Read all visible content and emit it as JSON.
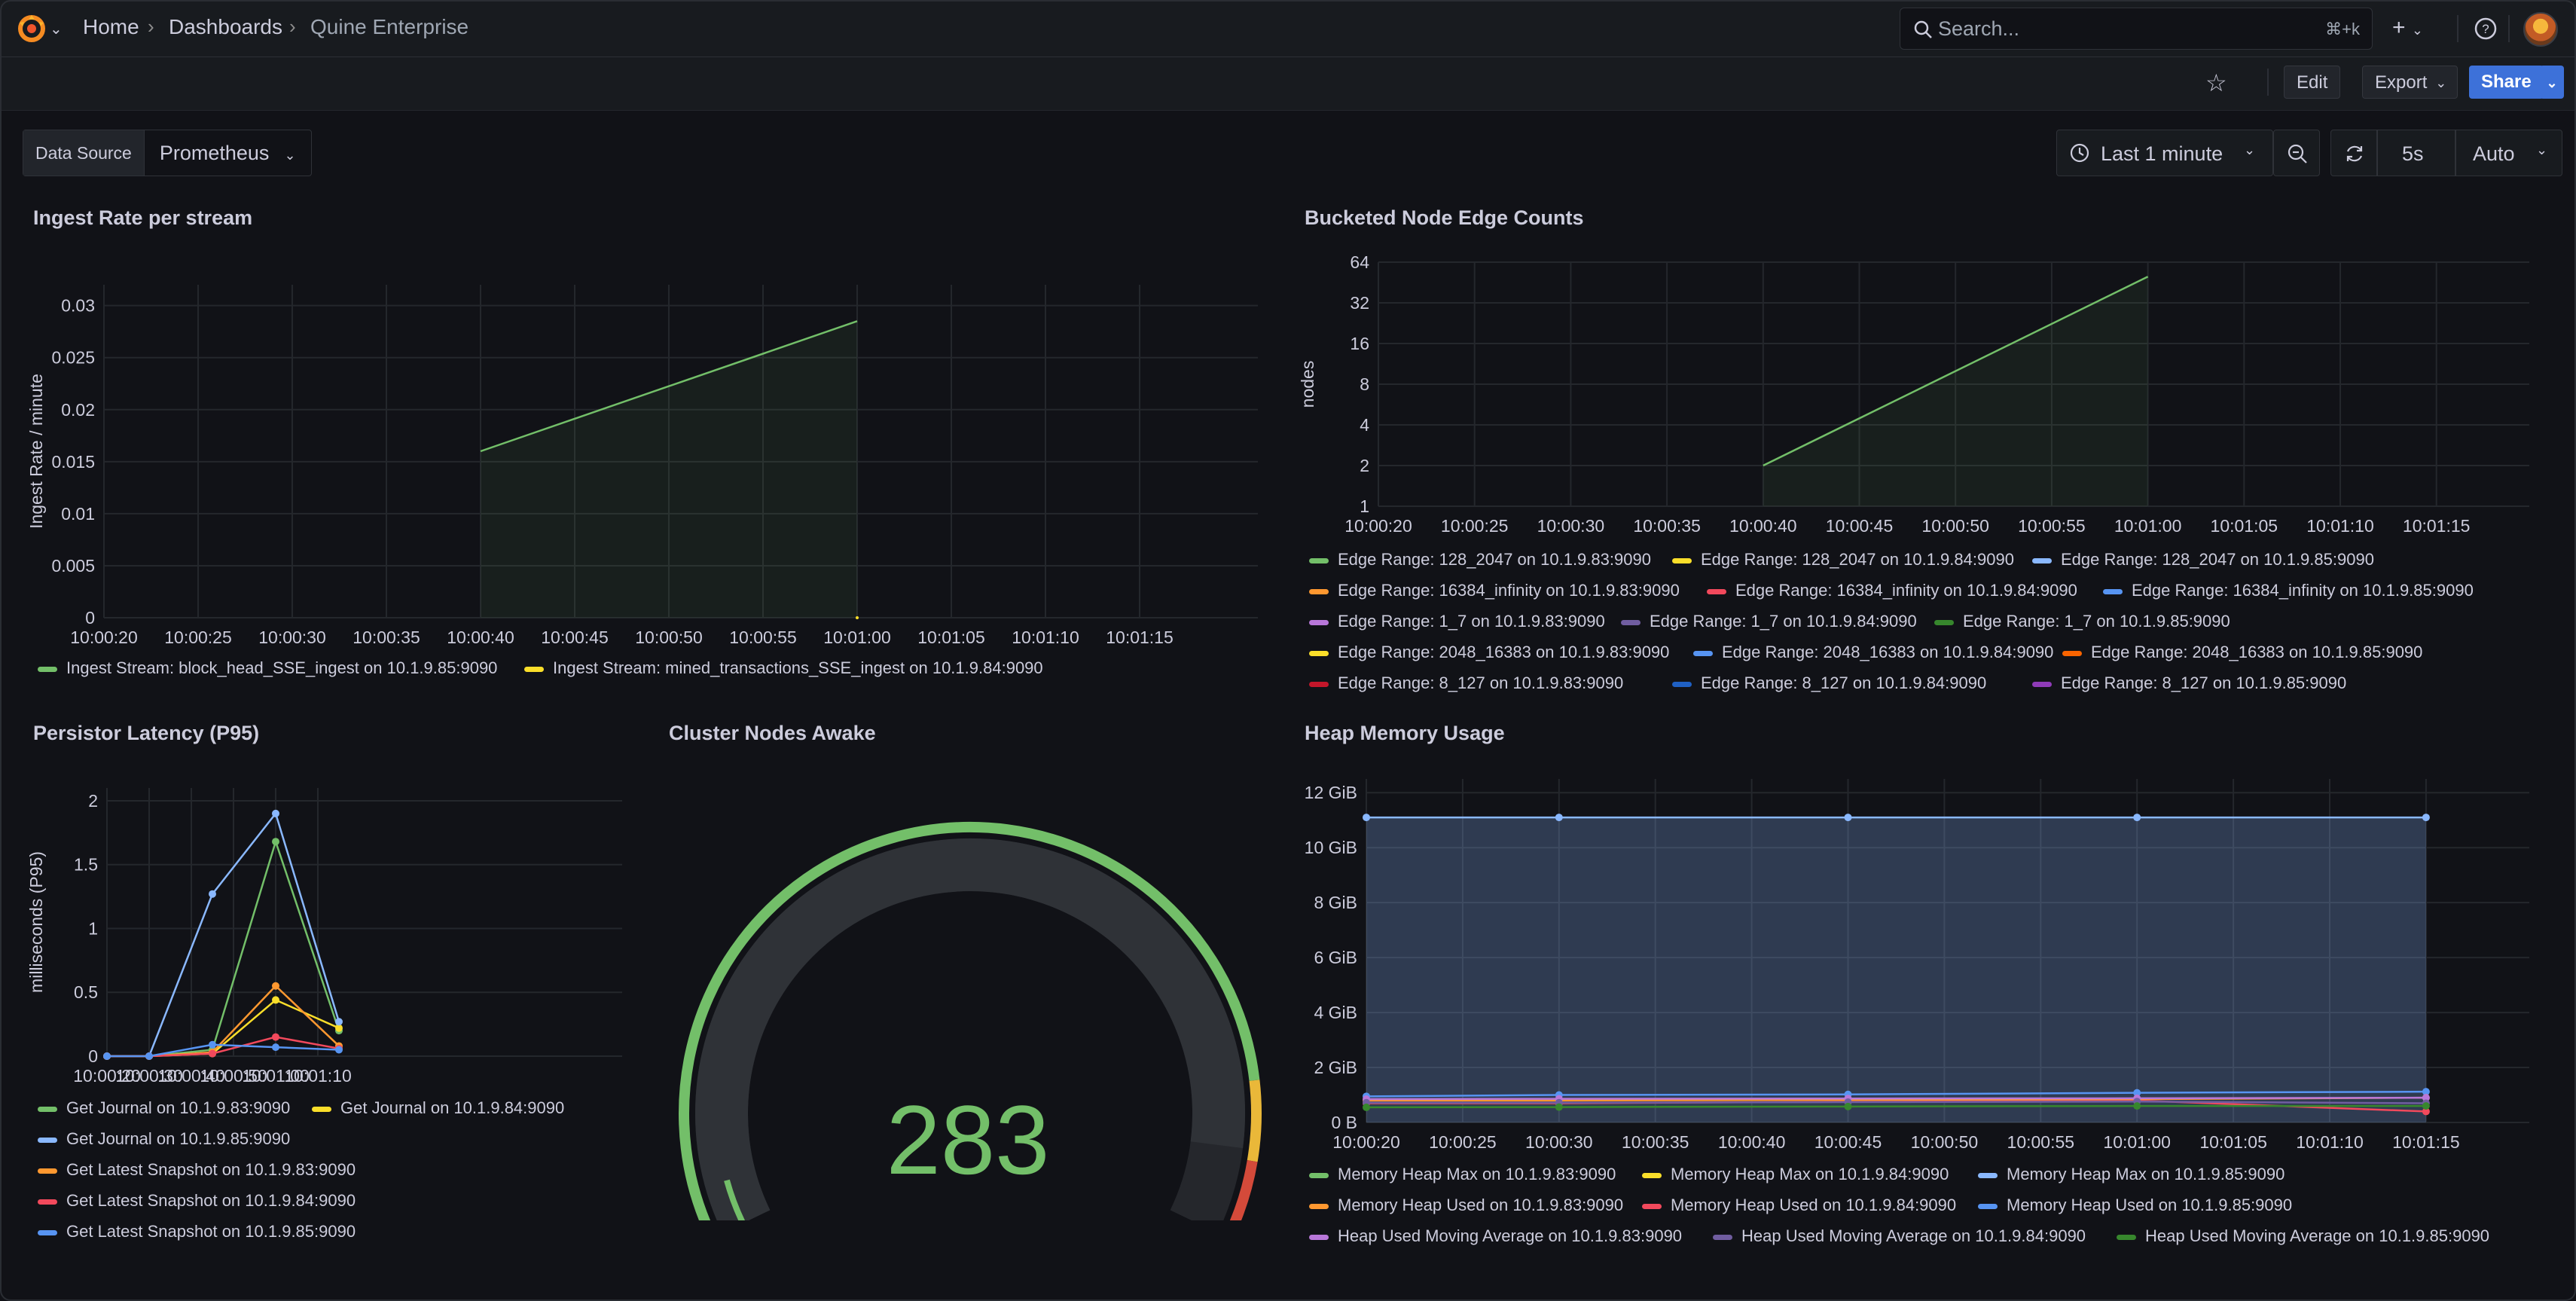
{
  "topbar": {
    "breadcrumbs": [
      "Home",
      "Dashboards",
      "Quine Enterprise"
    ],
    "search_placeholder": "Search...",
    "search_shortcut": "⌘+k",
    "icons": [
      "grafana-logo-icon",
      "plus-icon",
      "help-icon",
      "avatar"
    ]
  },
  "toolbar": {
    "edit": "Edit",
    "export": "Export",
    "share": "Share"
  },
  "variables": {
    "datasource_label": "Data Source",
    "datasource_value": "Prometheus"
  },
  "time_controls": {
    "range": "Last 1 minute",
    "refresh_interval": "5s",
    "auto": "Auto"
  },
  "panels": {
    "ingest": {
      "title": "Ingest Rate per stream",
      "legend": [
        {
          "label": "Ingest Stream: block_head_SSE_ingest on 10.1.9.85:9090",
          "color": "#73bf69"
        },
        {
          "label": "Ingest Stream: mined_transactions_SSE_ingest on 10.1.9.84:9090",
          "color": "#fade2a"
        }
      ]
    },
    "edges": {
      "title": "Bucketed Node Edge Counts",
      "legend": [
        {
          "label": "Edge Range: 128_2047 on 10.1.9.83:9090",
          "color": "#73bf69"
        },
        {
          "label": "Edge Range: 128_2047 on 10.1.9.84:9090",
          "color": "#fade2a"
        },
        {
          "label": "Edge Range: 128_2047 on 10.1.9.85:9090",
          "color": "#8ab8ff"
        },
        {
          "label": "Edge Range: 16384_infinity on 10.1.9.83:9090",
          "color": "#ff9830"
        },
        {
          "label": "Edge Range: 16384_infinity on 10.1.9.84:9090",
          "color": "#f2495c"
        },
        {
          "label": "Edge Range: 16384_infinity on 10.1.9.85:9090",
          "color": "#5794f2"
        },
        {
          "label": "Edge Range: 1_7 on 10.1.9.83:9090",
          "color": "#b877d9"
        },
        {
          "label": "Edge Range: 1_7 on 10.1.9.84:9090",
          "color": "#705da0"
        },
        {
          "label": "Edge Range: 1_7 on 10.1.9.85:9090",
          "color": "#37872d"
        },
        {
          "label": "Edge Range: 2048_16383 on 10.1.9.83:9090",
          "color": "#fade2a"
        },
        {
          "label": "Edge Range: 2048_16383 on 10.1.9.84:9090",
          "color": "#5794f2"
        },
        {
          "label": "Edge Range: 2048_16383 on 10.1.9.85:9090",
          "color": "#fa6400"
        },
        {
          "label": "Edge Range: 8_127 on 10.1.9.83:9090",
          "color": "#c4162a"
        },
        {
          "label": "Edge Range: 8_127 on 10.1.9.84:9090",
          "color": "#1f60c4"
        },
        {
          "label": "Edge Range: 8_127 on 10.1.9.85:9090",
          "color": "#8f3bb8"
        }
      ]
    },
    "persistor": {
      "title": "Persistor Latency (P95)",
      "legend": [
        {
          "label": "Get Journal on 10.1.9.83:9090",
          "color": "#73bf69"
        },
        {
          "label": "Get Journal on 10.1.9.84:9090",
          "color": "#fade2a"
        },
        {
          "label": "Get Journal on 10.1.9.85:9090",
          "color": "#8ab8ff"
        },
        {
          "label": "Get Latest Snapshot on 10.1.9.83:9090",
          "color": "#ff9830"
        },
        {
          "label": "Get Latest Snapshot on 10.1.9.84:9090",
          "color": "#f2495c"
        },
        {
          "label": "Get Latest Snapshot on 10.1.9.85:9090",
          "color": "#5794f2"
        }
      ]
    },
    "cluster": {
      "title": "Cluster Nodes Awake",
      "value": "283",
      "gauge_fraction": 0.92
    },
    "heap": {
      "title": "Heap Memory Usage",
      "legend": [
        {
          "label": "Memory Heap Max on 10.1.9.83:9090",
          "color": "#73bf69"
        },
        {
          "label": "Memory Heap Max on 10.1.9.84:9090",
          "color": "#fade2a"
        },
        {
          "label": "Memory Heap Max on 10.1.9.85:9090",
          "color": "#8ab8ff"
        },
        {
          "label": "Memory Heap Used on 10.1.9.83:9090",
          "color": "#ff9830"
        },
        {
          "label": "Memory Heap Used on 10.1.9.84:9090",
          "color": "#f2495c"
        },
        {
          "label": "Memory Heap Used on 10.1.9.85:9090",
          "color": "#5794f2"
        },
        {
          "label": "Heap Used Moving Average on 10.1.9.83:9090",
          "color": "#b877d9"
        },
        {
          "label": "Heap Used Moving Average on 10.1.9.84:9090",
          "color": "#705da0"
        },
        {
          "label": "Heap Used Moving Average on 10.1.9.85:9090",
          "color": "#37872d"
        }
      ]
    }
  },
  "chart_data": [
    {
      "id": "ingest",
      "type": "line",
      "title": "Ingest Rate per stream",
      "ylabel": "Ingest Rate / minute",
      "xlabel": "",
      "x_ticks": [
        "10:00:20",
        "10:00:25",
        "10:00:30",
        "10:00:35",
        "10:00:40",
        "10:00:45",
        "10:00:50",
        "10:00:55",
        "10:01:00",
        "10:01:05",
        "10:01:10",
        "10:01:15"
      ],
      "y_ticks": [
        "0",
        "0.005",
        "0.01",
        "0.015",
        "0.02",
        "0.025",
        "0.03"
      ],
      "ylim": [
        0,
        0.032
      ],
      "grid": true,
      "legend_position": "bottom",
      "series": [
        {
          "name": "Ingest Stream: block_head_SSE_ingest on 10.1.9.85:9090",
          "color": "#73bf69",
          "x": [
            "10:00:40",
            "10:01:00"
          ],
          "y": [
            0.016,
            0.0285
          ],
          "fill": true
        },
        {
          "name": "Ingest Stream: mined_transactions_SSE_ingest on 10.1.9.84:9090",
          "color": "#fade2a",
          "x": [
            "10:01:00"
          ],
          "y": [
            0
          ]
        }
      ]
    },
    {
      "id": "edges",
      "type": "line",
      "title": "Bucketed Node Edge Counts",
      "ylabel": "nodes",
      "scale": "log2",
      "x_ticks": [
        "10:00:20",
        "10:00:25",
        "10:00:30",
        "10:00:35",
        "10:00:40",
        "10:00:45",
        "10:00:50",
        "10:00:55",
        "10:01:00",
        "10:01:05",
        "10:01:10",
        "10:01:15"
      ],
      "y_ticks": [
        "1",
        "2",
        "4",
        "8",
        "16",
        "32",
        "64"
      ],
      "ylim": [
        1,
        64
      ],
      "grid": true,
      "legend_position": "bottom",
      "series": [
        {
          "name": "Edge Range: 128_2047 on 10.1.9.83:9090",
          "color": "#73bf69",
          "x": [
            "10:00:40",
            "10:01:00"
          ],
          "y": [
            2,
            50
          ],
          "fill": true
        }
      ]
    },
    {
      "id": "persistor",
      "type": "line",
      "title": "Persistor Latency (P95)",
      "ylabel": "milliseconds (P95)",
      "x_ticks": [
        "10:00:20",
        "10:00:30",
        "10:00:40",
        "10:00:50",
        "10:01:00",
        "10:01:10"
      ],
      "y_ticks": [
        "0",
        "0.5",
        "1",
        "1.5",
        "2"
      ],
      "ylim": [
        0,
        2.1
      ],
      "grid": true,
      "legend_position": "bottom",
      "x": [
        "10:00:20",
        "10:00:30",
        "10:00:45",
        "10:01:00",
        "10:01:15"
      ],
      "series": [
        {
          "name": "Get Journal on 10.1.9.83:9090",
          "color": "#73bf69",
          "y": [
            0,
            0,
            0.05,
            1.68,
            0.2
          ]
        },
        {
          "name": "Get Journal on 10.1.9.84:9090",
          "color": "#fade2a",
          "y": [
            0,
            0,
            0.02,
            0.44,
            0.22
          ]
        },
        {
          "name": "Get Journal on 10.1.9.85:9090",
          "color": "#8ab8ff",
          "y": [
            0,
            0,
            1.27,
            1.9,
            0.27
          ]
        },
        {
          "name": "Get Latest Snapshot on 10.1.9.83:9090",
          "color": "#ff9830",
          "y": [
            0,
            0,
            0.03,
            0.55,
            0.08
          ]
        },
        {
          "name": "Get Latest Snapshot on 10.1.9.84:9090",
          "color": "#f2495c",
          "y": [
            0,
            0,
            0.02,
            0.15,
            0.06
          ]
        },
        {
          "name": "Get Latest Snapshot on 10.1.9.85:9090",
          "color": "#5794f2",
          "y": [
            0,
            0,
            0.09,
            0.07,
            0.05
          ]
        }
      ]
    },
    {
      "id": "cluster",
      "type": "gauge",
      "title": "Cluster Nodes Awake",
      "value": 283,
      "fraction": 0.92
    },
    {
      "id": "heap",
      "type": "line",
      "title": "Heap Memory Usage",
      "x_ticks": [
        "10:00:20",
        "10:00:25",
        "10:00:30",
        "10:00:35",
        "10:00:40",
        "10:00:45",
        "10:00:50",
        "10:00:55",
        "10:01:00",
        "10:01:05",
        "10:01:10",
        "10:01:15"
      ],
      "y_ticks": [
        "0 B",
        "2 GiB",
        "4 GiB",
        "6 GiB",
        "8 GiB",
        "10 GiB",
        "12 GiB"
      ],
      "ylim": [
        0,
        12.5
      ],
      "grid": true,
      "legend_position": "bottom",
      "x": [
        "10:00:20",
        "10:00:30",
        "10:00:45",
        "10:01:00",
        "10:01:15"
      ],
      "series": [
        {
          "name": "Memory Heap Max on 10.1.9.85:9090",
          "color": "#8ab8ff",
          "y": [
            11.1,
            11.1,
            11.1,
            11.1,
            11.1
          ],
          "fill": true
        },
        {
          "name": "Memory Heap Used on 10.1.9.85:9090",
          "color": "#5794f2",
          "y": [
            0.95,
            1.0,
            1.02,
            1.08,
            1.12
          ]
        },
        {
          "name": "Memory Heap Used on 10.1.9.84:9090",
          "color": "#f2495c",
          "y": [
            0.7,
            0.7,
            0.75,
            0.8,
            0.4
          ]
        },
        {
          "name": "Memory Heap Used on 10.1.9.83:9090",
          "color": "#ff9830",
          "y": [
            0.8,
            0.8,
            0.82,
            0.85,
            0.9
          ]
        },
        {
          "name": "Heap Used Moving Average on 10.1.9.83:9090",
          "color": "#b877d9",
          "y": [
            0.85,
            0.86,
            0.87,
            0.88,
            0.9
          ]
        },
        {
          "name": "Heap Used Moving Average on 10.1.9.84:9090",
          "color": "#705da0",
          "y": [
            0.72,
            0.72,
            0.74,
            0.76,
            0.7
          ]
        },
        {
          "name": "Heap Used Moving Average on 10.1.9.85:9090",
          "color": "#37872d",
          "y": [
            0.55,
            0.56,
            0.58,
            0.6,
            0.6
          ]
        }
      ]
    }
  ]
}
